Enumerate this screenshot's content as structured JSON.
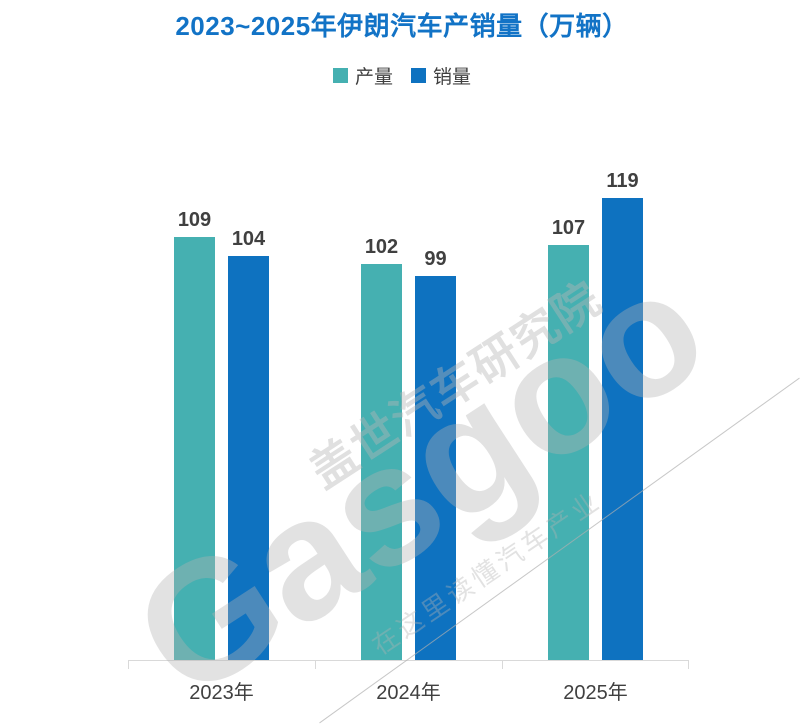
{
  "chart_data": {
    "type": "bar",
    "title": "2023~2025年伊朗汽车产销量（万辆）",
    "categories": [
      "2023年",
      "2024年",
      "2025年"
    ],
    "series": [
      {
        "name": "产量",
        "color": "#45b0b1",
        "values": [
          109,
          102,
          107
        ]
      },
      {
        "name": "销量",
        "color": "#0e72c0",
        "values": [
          104,
          99,
          119
        ]
      }
    ],
    "value_labels_shown": true,
    "grid": false,
    "legend_position": "top",
    "title_color": "#1273c6",
    "axis_color": "#d9d9d9",
    "label_color": "#404040"
  },
  "watermark": {
    "brand": "Gasgoo",
    "line1": "盖世汽车研究院",
    "line2": "在这里读懂汽车产业"
  }
}
